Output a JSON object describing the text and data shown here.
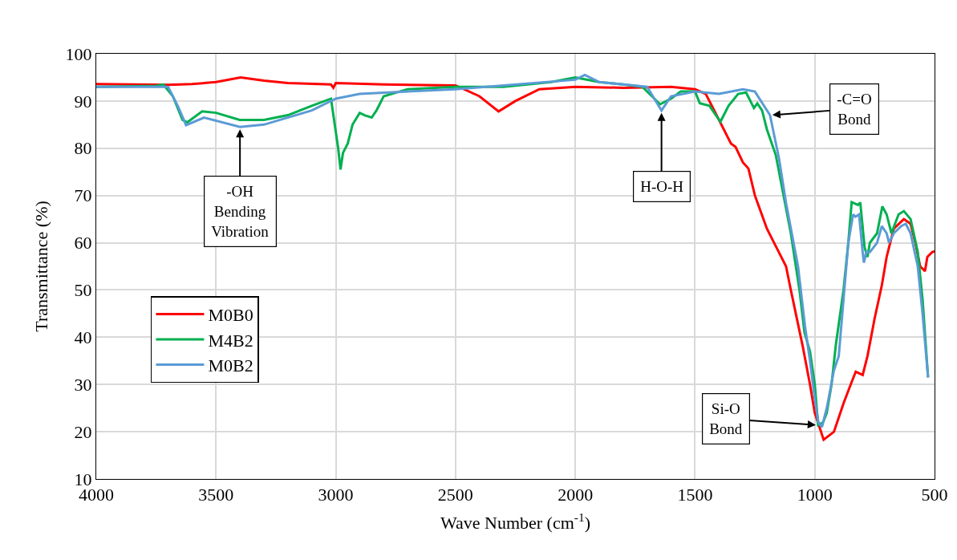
{
  "chart_data": {
    "type": "line",
    "xlabel": "Wave Number (cm$^{-1}$)",
    "ylabel": "Transmittance (%)",
    "xlim": [
      4000,
      500
    ],
    "xticks": [
      4000,
      3500,
      3000,
      2500,
      2000,
      1500,
      1000,
      500
    ],
    "ylim": [
      10,
      100
    ],
    "yticks": [
      10,
      20,
      30,
      40,
      50,
      60,
      70,
      80,
      90,
      100
    ],
    "grid": true,
    "legend": "left",
    "marker": "none",
    "line_style": "solid",
    "series": [
      {
        "name": "M0B0",
        "color": "#ff0000",
        "x": [
          4000,
          3700,
          3600,
          3500,
          3397,
          3300,
          3200,
          3020,
          3010,
          3000,
          2800,
          2500,
          2400,
          2320,
          2250,
          2150,
          2000,
          1800,
          1600,
          1500,
          1455,
          1400,
          1350,
          1331,
          1300,
          1277,
          1250,
          1200,
          1150,
          1120,
          1100,
          1050,
          1020,
          1000,
          963,
          920,
          880,
          850,
          829,
          800,
          780,
          750,
          720,
          700,
          670,
          628,
          600,
          580,
          560,
          540,
          530,
          510,
          500
        ],
        "values": [
          93.6,
          93.4,
          93.6,
          94,
          95,
          94.3,
          93.8,
          93.5,
          92.8,
          93.8,
          93.5,
          93.3,
          91,
          87.8,
          90,
          92.5,
          93,
          92.8,
          93,
          92.5,
          91.5,
          86,
          81,
          80.3,
          77,
          75.7,
          70,
          63,
          58,
          55,
          50,
          38,
          30,
          24,
          18.3,
          20,
          26,
          30,
          32.7,
          32,
          36,
          44,
          51,
          57,
          63,
          65,
          64,
          60,
          55,
          54,
          57,
          58,
          58.2
        ]
      },
      {
        "name": "M4B2",
        "color": "#00b050",
        "x": [
          4000,
          3750,
          3720,
          3680,
          3640,
          3620,
          3558,
          3500,
          3401,
          3300,
          3200,
          3100,
          3020,
          3010,
          2990,
          2980,
          2970,
          2950,
          2930,
          2900,
          2880,
          2850,
          2830,
          2800,
          2700,
          2500,
          2300,
          2200,
          2100,
          2000,
          1900,
          1800,
          1720,
          1680,
          1646,
          1600,
          1560,
          1500,
          1480,
          1440,
          1394,
          1360,
          1320,
          1287,
          1254,
          1240,
          1220,
          1200,
          1163,
          1100,
          1063,
          1043,
          1020,
          1000,
          986,
          965,
          950,
          930,
          912,
          880,
          860,
          846,
          820,
          810,
          792,
          780,
          770,
          740,
          718,
          700,
          680,
          650,
          628,
          600,
          570,
          550,
          527
        ],
        "values": [
          93,
          93.2,
          93.5,
          91,
          86,
          85.5,
          87.8,
          87.5,
          86,
          86,
          87,
          89,
          90.5,
          87,
          80,
          75.5,
          79,
          81,
          85,
          87.5,
          87,
          86.5,
          88,
          91,
          92.5,
          93,
          93,
          93.5,
          94,
          95,
          94,
          93.5,
          93,
          91,
          89.3,
          90.5,
          92,
          92,
          89.5,
          89,
          85.6,
          89,
          91.5,
          91.8,
          88.5,
          89.5,
          88,
          84,
          78.6,
          62,
          49.7,
          41,
          37,
          30,
          21.4,
          22,
          24,
          30,
          38.4,
          50,
          60,
          68.6,
          68,
          68.5,
          59,
          57,
          60,
          62,
          67.7,
          66,
          62,
          66,
          66.7,
          65,
          58,
          48,
          31.5
        ]
      },
      {
        "name": "M0B2",
        "color": "#5b9bd5",
        "x": [
          4000,
          3750,
          3700,
          3660,
          3625,
          3550,
          3400,
          3300,
          3100,
          3000,
          2900,
          2500,
          2000,
          1960,
          1900,
          1700,
          1640,
          1600,
          1500,
          1400,
          1300,
          1250,
          1187,
          1150,
          1120,
          1070,
          1040,
          1020,
          1000,
          985,
          970,
          950,
          920,
          900,
          880,
          860,
          840,
          830,
          815,
          800,
          795,
          785,
          770,
          740,
          720,
          700,
          690,
          670,
          640,
          620,
          600,
          570,
          550,
          527
        ],
        "values": [
          93,
          93,
          93,
          89,
          84.9,
          86.5,
          84.5,
          85,
          88,
          90.5,
          91.5,
          92.5,
          94.5,
          95.5,
          94,
          93,
          88,
          91,
          92,
          91.5,
          92.5,
          92,
          87,
          78,
          68.4,
          55,
          42,
          35,
          27,
          22,
          21,
          25,
          33,
          36,
          48,
          60,
          66,
          65.5,
          66,
          58,
          55.8,
          58,
          58,
          60,
          63.5,
          62,
          60,
          62,
          63.5,
          64,
          62,
          55,
          45,
          31.5
        ]
      }
    ],
    "annotations": [
      {
        "text": "-OH\nBending\nVibration",
        "x": 3400,
        "y": 84.5
      },
      {
        "text": "H-O-H",
        "x": 1640,
        "y": 88
      },
      {
        "text": "-C=O\nBond",
        "x": 1187,
        "y": 87
      },
      {
        "text": "Si-O\nBond",
        "x": 986,
        "y": 21.4
      }
    ]
  }
}
